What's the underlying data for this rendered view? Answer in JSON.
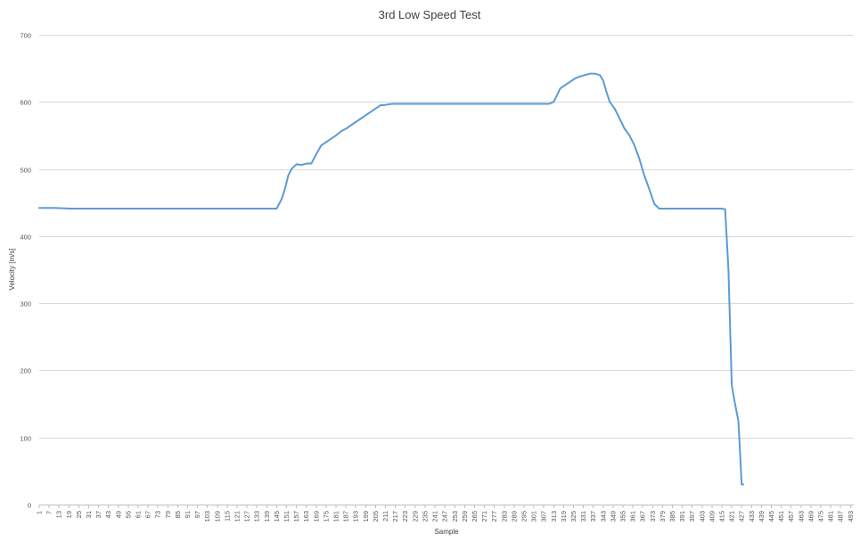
{
  "chart_data": {
    "type": "line",
    "title": "3rd Low Speed Test",
    "xlabel": "Sample",
    "ylabel": "Velocity [m/s]",
    "ylim": [
      0,
      700
    ],
    "yticks": [
      0,
      100,
      200,
      300,
      400,
      500,
      600,
      700
    ],
    "xlim": [
      1,
      495
    ],
    "xticks": [
      1,
      7,
      13,
      19,
      25,
      31,
      37,
      43,
      49,
      55,
      61,
      67,
      73,
      79,
      85,
      91,
      97,
      103,
      109,
      115,
      121,
      127,
      133,
      139,
      145,
      151,
      157,
      163,
      169,
      175,
      181,
      187,
      193,
      199,
      205,
      211,
      217,
      223,
      229,
      235,
      241,
      247,
      253,
      259,
      265,
      271,
      277,
      283,
      289,
      295,
      301,
      307,
      313,
      319,
      325,
      331,
      337,
      343,
      349,
      355,
      361,
      367,
      373,
      379,
      385,
      391,
      397,
      403,
      409,
      415,
      421,
      427,
      433,
      439,
      445,
      451,
      457,
      463,
      469,
      475,
      481,
      487,
      493
    ],
    "grid": true,
    "series_color": "#5b9bd5",
    "series": [
      {
        "x": [
          1,
          10,
          20,
          30,
          40,
          50,
          60,
          80,
          100,
          120,
          140,
          145,
          148,
          150,
          152,
          154,
          157,
          160,
          163,
          166,
          169,
          172,
          175,
          178,
          181,
          184,
          187,
          190,
          193,
          196,
          199,
          202,
          205,
          208,
          210,
          212,
          215,
          220,
          230,
          240,
          250,
          260,
          270,
          280,
          290,
          300,
          305,
          310,
          313,
          315,
          317,
          320,
          323,
          326,
          329,
          332,
          335,
          338,
          341,
          343,
          345,
          347,
          350,
          353,
          356,
          359,
          362,
          365,
          368,
          371,
          374,
          377,
          379,
          382,
          385,
          390,
          395,
          400,
          405,
          410,
          415,
          417,
          419,
          421,
          423,
          425,
          426,
          427,
          428
        ],
        "y": [
          442,
          442,
          441,
          441,
          441,
          441,
          441,
          441,
          441,
          441,
          441,
          441,
          455,
          470,
          490,
          500,
          507,
          506,
          508,
          508,
          522,
          535,
          540,
          545,
          550,
          556,
          560,
          565,
          570,
          575,
          580,
          585,
          590,
          595,
          595,
          596,
          597,
          597,
          597,
          597,
          597,
          597,
          597,
          597,
          597,
          597,
          597,
          597,
          600,
          610,
          620,
          625,
          630,
          635,
          638,
          640,
          642,
          642,
          640,
          632,
          615,
          600,
          590,
          575,
          560,
          550,
          535,
          515,
          490,
          470,
          448,
          441,
          441,
          441,
          441,
          441,
          441,
          441,
          441,
          441,
          441,
          440,
          350,
          178,
          150,
          125,
          80,
          30,
          30
        ]
      }
    ]
  }
}
